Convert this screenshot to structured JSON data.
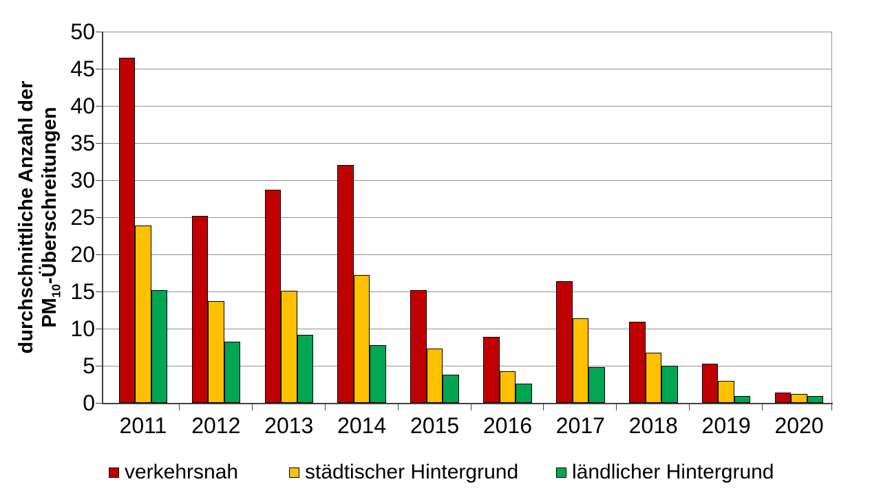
{
  "figure": {
    "background": "#FFFFFF"
  },
  "colors": {
    "gridline": "#8F8F8F",
    "axis": "#3F3F3F",
    "bar_border": "#000000",
    "text": "#000000"
  },
  "y_axis": {
    "title_line1": "durchschnittliche Anzahl der",
    "title_line2_prefix": "PM",
    "title_line2_subscript": "10",
    "title_line2_suffix": "-Überschreitungen"
  },
  "legend": {
    "items": [
      {
        "label": "verkehrsnah",
        "color": "#C00000"
      },
      {
        "label": "städtischer Hintergrund",
        "color": "#FFC000"
      },
      {
        "label": "ländlicher Hintergrund",
        "color": "#00A651"
      }
    ]
  },
  "chart_data": {
    "type": "bar",
    "title": "",
    "xlabel": "",
    "ylabel": "durchschnittliche Anzahl der PM10-Überschreitungen",
    "categories": [
      "2011",
      "2012",
      "2013",
      "2014",
      "2015",
      "2016",
      "2017",
      "2018",
      "2019",
      "2020"
    ],
    "series": [
      {
        "name": "verkehrsnah",
        "color": "#C00000",
        "values": [
          46.5,
          25.2,
          28.7,
          32.0,
          15.2,
          8.9,
          16.4,
          10.9,
          5.3,
          1.4
        ]
      },
      {
        "name": "städtischer Hintergrund",
        "color": "#FFC000",
        "values": [
          23.9,
          13.7,
          15.1,
          17.2,
          7.3,
          4.3,
          11.4,
          6.8,
          3.0,
          1.2
        ]
      },
      {
        "name": "ländlicher Hintergrund",
        "color": "#00A651",
        "values": [
          15.2,
          8.2,
          9.2,
          7.8,
          3.8,
          2.6,
          4.8,
          5.0,
          0.9,
          0.9
        ]
      }
    ],
    "ylim": [
      0,
      50
    ],
    "ytick_step": 5,
    "yticks": [
      0,
      5,
      10,
      15,
      20,
      25,
      30,
      35,
      40,
      45,
      50
    ],
    "grid": true,
    "legend_position": "bottom"
  }
}
